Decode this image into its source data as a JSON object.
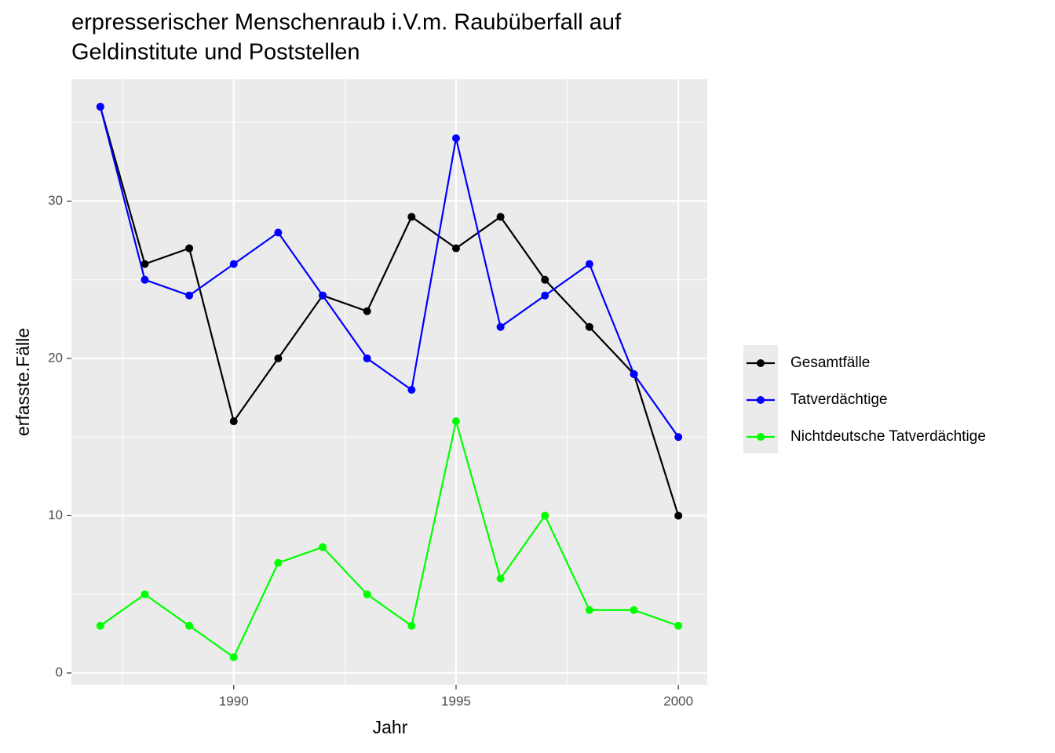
{
  "chart_data": {
    "type": "line",
    "title": [
      "erpresserischer Menschenraub i.V.m. Raubüberfall auf",
      "Geldinstitute und Poststellen"
    ],
    "x_label": "Jahr",
    "y_label": "erfasste.Fälle",
    "x": [
      1987,
      1988,
      1989,
      1990,
      1991,
      1992,
      1993,
      1994,
      1995,
      1996,
      1997,
      1998,
      1999,
      2000
    ],
    "series": [
      {
        "name": "Gesamtfälle",
        "color": "#000000",
        "values": [
          36,
          26,
          27,
          16,
          20,
          24,
          23,
          29,
          27,
          29,
          25,
          22,
          19,
          10
        ]
      },
      {
        "name": "Tatverdächtige",
        "color": "#0000ff",
        "values": [
          36,
          25,
          24,
          26,
          28,
          24,
          20,
          18,
          34,
          22,
          24,
          26,
          19,
          15
        ]
      },
      {
        "name": "Nichtdeutsche Tatverdächtige",
        "color": "#00ff00",
        "values": [
          3,
          5,
          3,
          1,
          7,
          8,
          5,
          3,
          16,
          6,
          10,
          4,
          4,
          3
        ]
      }
    ],
    "xlim": [
      1986.35,
      2000.65
    ],
    "xticks": [
      1990,
      1995,
      2000
    ],
    "ylim": [
      -0.75,
      37.75
    ],
    "yticks": [
      0,
      10,
      20,
      30
    ],
    "grid": true,
    "legend": "right"
  }
}
